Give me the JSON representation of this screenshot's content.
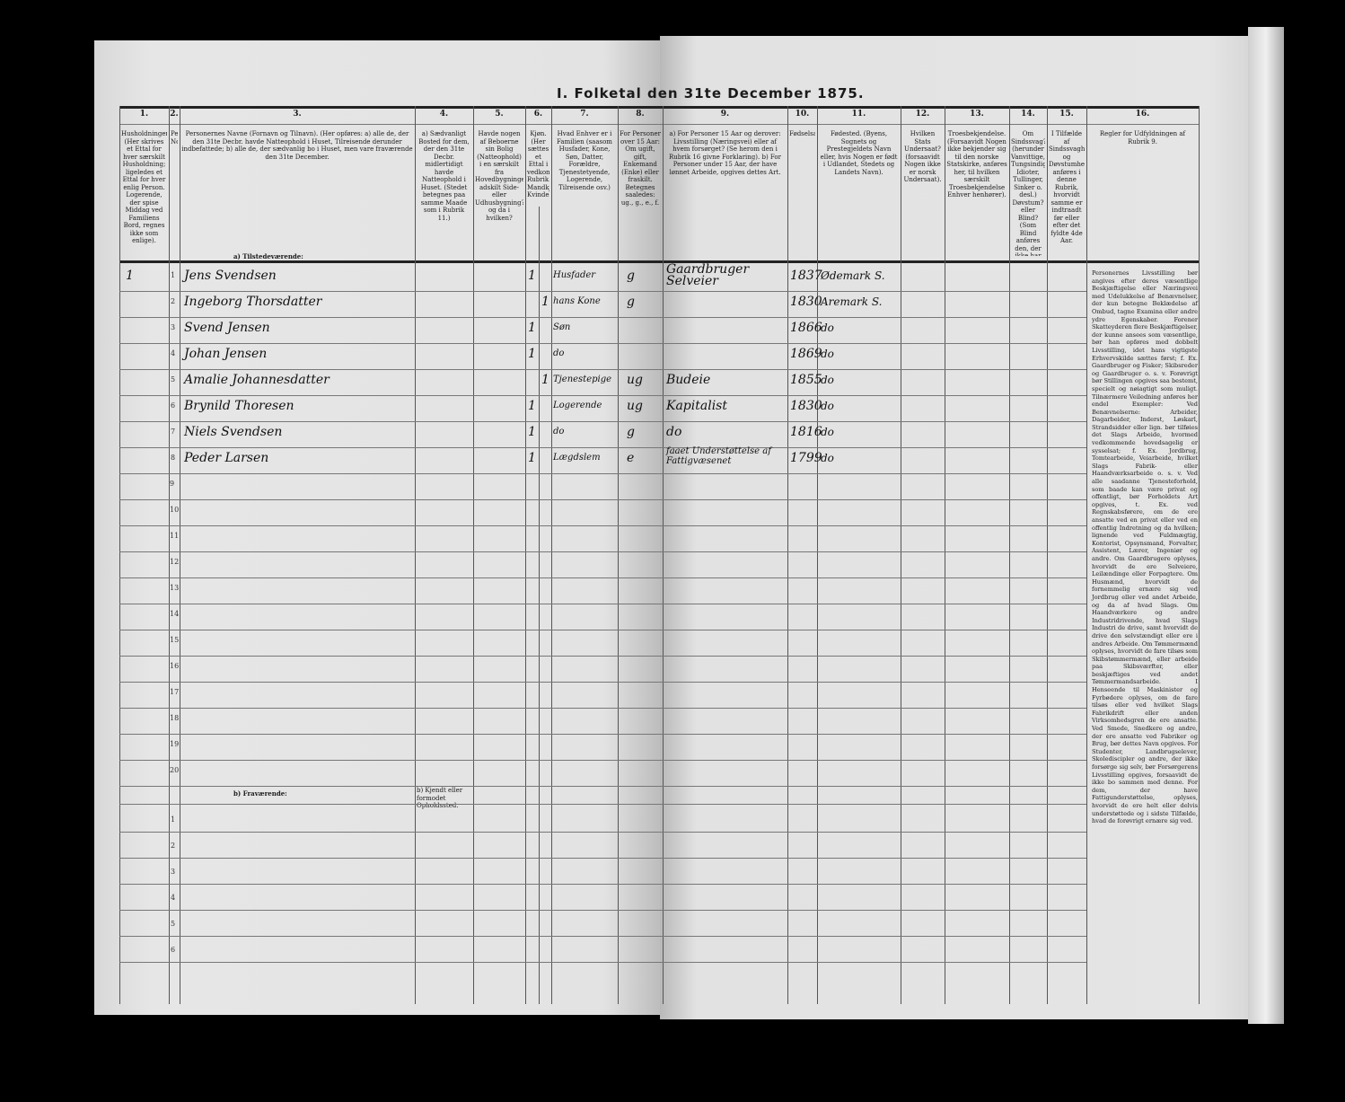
{
  "title": "I. Folketal den 31te December 1875.",
  "columns": [
    {
      "num": "1.",
      "text": "Husholdninger. (Her skrives et Ettal for hver særskilt Husholdning; ligeledes et Ettal for hver enlig Person. Logerende, der spise Middag ved Familiens Bord, regnes ikke som enlige)."
    },
    {
      "num": "2.",
      "text": "Personernes No."
    },
    {
      "num": "3.",
      "text": "Personernes Navne (Fornavn og Tilnavn). (Her opføres: a) alle de, der den 31te Decbr. havde Natteophold i Huset, Tilreisende derunder indbefattede; b) alle de, der sædvanlig bo i Huset, men vare fraværende den 31te December."
    },
    {
      "num": "4.",
      "text": "a) Sædvanligt Bosted for dem, der den 31te Decbr. midlertidigt havde Natteophold i Huset. (Stedet betegnes paa samme Maade som i Rubrik 11.)"
    },
    {
      "num": "5.",
      "text": "Havde nogen af Beboerne sin Bolig (Natteophold) i en særskilt fra Hovedbygningen adskilt Side- eller Udhusbygning? og da i hvilken?"
    },
    {
      "num": "6.",
      "text": "Kjøn. (Her sættes et Ettal i vedkommende Rubrik.) Mandkjøn. Kvindekjøn."
    },
    {
      "num": "7.",
      "text": "Hvad Enhver er i Familien (saasom Husfader, Kone, Søn, Datter, Forældre, Tjenestetyende, Logerende, Tilreisende osv.)"
    },
    {
      "num": "8.",
      "text": "For Personer over 15 Aar: Om ugift, gift, Enkemand (Enke) eller fraskilt. Betegnes saaledes: ug., g., e., f."
    },
    {
      "num": "9.",
      "text": "a) For Personer 15 Aar og derover: Livsstilling (Næringsvei) eller af hvem forsørget? (Se herom den i Rubrik 16 givne Forklaring). b) For Personer under 15 Aar, der have lønnet Arbeide, opgives dettes Art."
    },
    {
      "num": "10.",
      "text": "Fødselsaar."
    },
    {
      "num": "11.",
      "text": "Fødested. (Byens, Sognets og Prestegjeldets Navn eller, hvis Nogen er født i Udlandet, Stedets og Landets Navn)."
    },
    {
      "num": "12.",
      "text": "Hvilken Stats Undersaat? (forsaavidt Nogen ikke er norsk Undersaat)."
    },
    {
      "num": "13.",
      "text": "Troesbekjendelse. (Forsaavidt Nogen ikke bekjender sig til den norske Statskirke, anføres her, til hvilken særskilt Troesbekjendelse Enhver henhører)."
    },
    {
      "num": "14.",
      "text": "Om Sindssvag? (herunder Vanvittige, Tungsindige, Idioter, Tullinger, Sinker o. desl.) Døvstum? eller Blind? (Som Blind anføres den, der ikke har Gangsyn)."
    },
    {
      "num": "15.",
      "text": "I Tilfælde af Sindssvaghed og Døvstumhed anføres i denne Rubrik, hvorvidt samme er indtraadt før eller efter det fyldte 4de Aar."
    },
    {
      "num": "16.",
      "text": "Regler for Udfyldningen af Rubrik 9."
    }
  ],
  "section_present": "a) Tilstedeværende:",
  "section_absent": "b) Fraværende:",
  "absent_col4": "b) Kjendt eller formodet Opholdssted.",
  "rows": [
    {
      "no": "1",
      "household": "1",
      "name": "Jens Svendsen",
      "male": "1",
      "female": "",
      "role": "Husfader",
      "civil": "g",
      "occupation": "Gaardbruger Selveier",
      "year": "1837",
      "birthplace": "Ødemark S."
    },
    {
      "no": "2",
      "household": "",
      "name": "Ingeborg Thorsdatter",
      "male": "",
      "female": "1",
      "role": "hans Kone",
      "civil": "g",
      "occupation": "",
      "year": "1830",
      "birthplace": "Aremark S."
    },
    {
      "no": "3",
      "household": "",
      "name": "Svend Jensen",
      "male": "1",
      "female": "",
      "role": "Søn",
      "civil": "",
      "occupation": "",
      "year": "1866",
      "birthplace": "do"
    },
    {
      "no": "4",
      "household": "",
      "name": "Johan Jensen",
      "male": "1",
      "female": "",
      "role": "do",
      "civil": "",
      "occupation": "",
      "year": "1869",
      "birthplace": "do"
    },
    {
      "no": "5",
      "household": "",
      "name": "Amalie Johannesdatter",
      "male": "",
      "female": "1",
      "role": "Tjenestepige",
      "civil": "ug",
      "occupation": "Budeie",
      "year": "1855",
      "birthplace": "do"
    },
    {
      "no": "6",
      "household": "",
      "name": "Brynild Thoresen",
      "male": "1",
      "female": "",
      "role": "Logerende",
      "civil": "ug",
      "occupation": "Kapitalist",
      "year": "1830",
      "birthplace": "do"
    },
    {
      "no": "7",
      "household": "",
      "name": "Niels Svendsen",
      "male": "1",
      "female": "",
      "role": "do",
      "civil": "g",
      "occupation": "do",
      "year": "1816",
      "birthplace": "do"
    },
    {
      "no": "8",
      "household": "",
      "name": "Peder Larsen",
      "male": "1",
      "female": "",
      "role": "Lægdslem",
      "civil": "e",
      "occupation": "faaet Understøttelse af Fattigvæsenet",
      "year": "1799",
      "birthplace": "do"
    }
  ],
  "empty_rows": [
    "9",
    "10",
    "11",
    "12",
    "13",
    "14",
    "15",
    "16",
    "17",
    "18",
    "19",
    "20"
  ],
  "absent_rows": [
    "1",
    "2",
    "3",
    "4",
    "5",
    "6"
  ],
  "rules_text": "Personernes Livsstilling bør angives efter deres væsentlige Beskjæftigelse eller Næringsvei med Udelukkelse af Benævnelser, der kun betegne Beklædelse af Ombud, tagne Examina eller andre ydre Egenskaber. Forener Skatteyderen flere Beskjæftigelser, der kunne ansees som væsentlige, bør han opføres med dobbelt Livsstilling, idet hans vigtigste Erhvervskilde sættes først; f. Ex. Gaardbruger og Fisker; Skibsreder og Gaardbruger o. s. v. Forøvrigt bør Stillingen opgives saa bestemt, specielt og nøiagtigt som muligt. Tilnærmere Veiledning anføres her endel Exempler: Ved Benævnelserne: Arbeider, Dagarbeider, Inderst, Løskarl, Strandsidder eller lign. bør tilføies det Slags Arbeide, hvormed vedkommende hovedsagelig er sysselsat; f. Ex. Jordbrug, Tomtearbeide, Veiarbeide, hvilket Slags Fabrik- eller Haandværksarbeide o. s. v. Ved alle saadanne Tjenesteforhold, som baade kan være privat og offentligt, bør Forholdets Art opgives, t. Ex. ved Regnskabsførere, om de ere ansatte ved en privat eller ved en offentlig Indretning og da hvilken; lignende ved Fuldmægtig, Kontorist, Opsynsmand, Forvalter, Assistent, Lærer, Ingeniør og andre. Om Gaardbrugere oplyses, hvorvidt de ere Selveiere, Leilændinge eller Forpagtere. Om Husmænd, hvorvidt de fornemmelig ernære sig ved Jordbrug eller ved andet Arbeide, og da af hvad Slags. Om Haandværkere og andre Industridrivende, hvad Slags Industri de drive, samt hvorvidt de drive den selvstændigt eller ere i andres Arbeide. Om Tømmermænd oplyses, hvorvidt de fare tilsøs som Skibstømmermænd, eller arbeide paa Skibsværfter, eller beskjæftiges ved andet Tømmermandsarbeide. I Henseende til Maskinister og Fyrbødere oplyses, om de fare tilsøs eller ved hvilket Slags Fabrikdrift eller anden Virksomhedsgren de ere ansatte. Ved Smede, Snedkere og andre, der ere ansatte ved Fabriker og Brug, bør dettes Navn opgives. For Studenter, Landbrugselever, Skolediscipler og andre, der ikke forsørge sig selv, bør Forsørgerens Livsstilling opgives, forsaavidt de ikke bo sammen med denne. For dem, der have Fattigunderstøttelse, oplyses, hvorvidt de ere helt eller delvis understøttede og i sidste Tilfælde, hvad de forøvrigt ernære sig ved."
}
